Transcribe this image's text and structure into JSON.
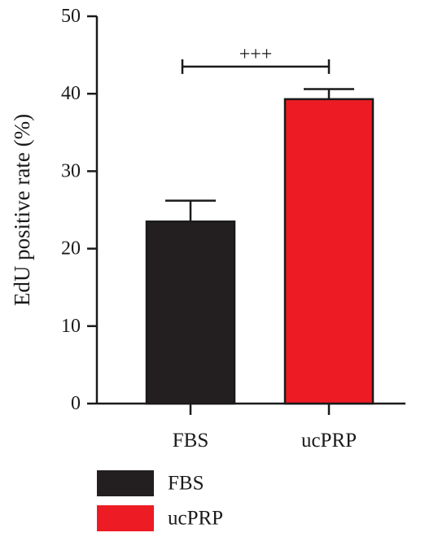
{
  "chart_data": {
    "type": "bar",
    "title": "",
    "xlabel": "",
    "ylabel": "EdU positive rate (%)",
    "ylim": [
      0,
      50
    ],
    "yticks": [
      0,
      10,
      20,
      30,
      40,
      50
    ],
    "categories": [
      "FBS",
      "ucPRP"
    ],
    "values": [
      23.5,
      39.3
    ],
    "errors": [
      2.7,
      1.3
    ],
    "colors": [
      "#231f20",
      "#ed1c24"
    ],
    "legend": {
      "placement": "bottom",
      "entries": [
        {
          "label": "FBS",
          "color": "#231f20"
        },
        {
          "label": "ucPRP",
          "color": "#ed1c24"
        }
      ]
    },
    "annotation": {
      "text": "+++",
      "between": [
        "FBS",
        "ucPRP"
      ],
      "level": 43.5
    },
    "grid": false
  }
}
